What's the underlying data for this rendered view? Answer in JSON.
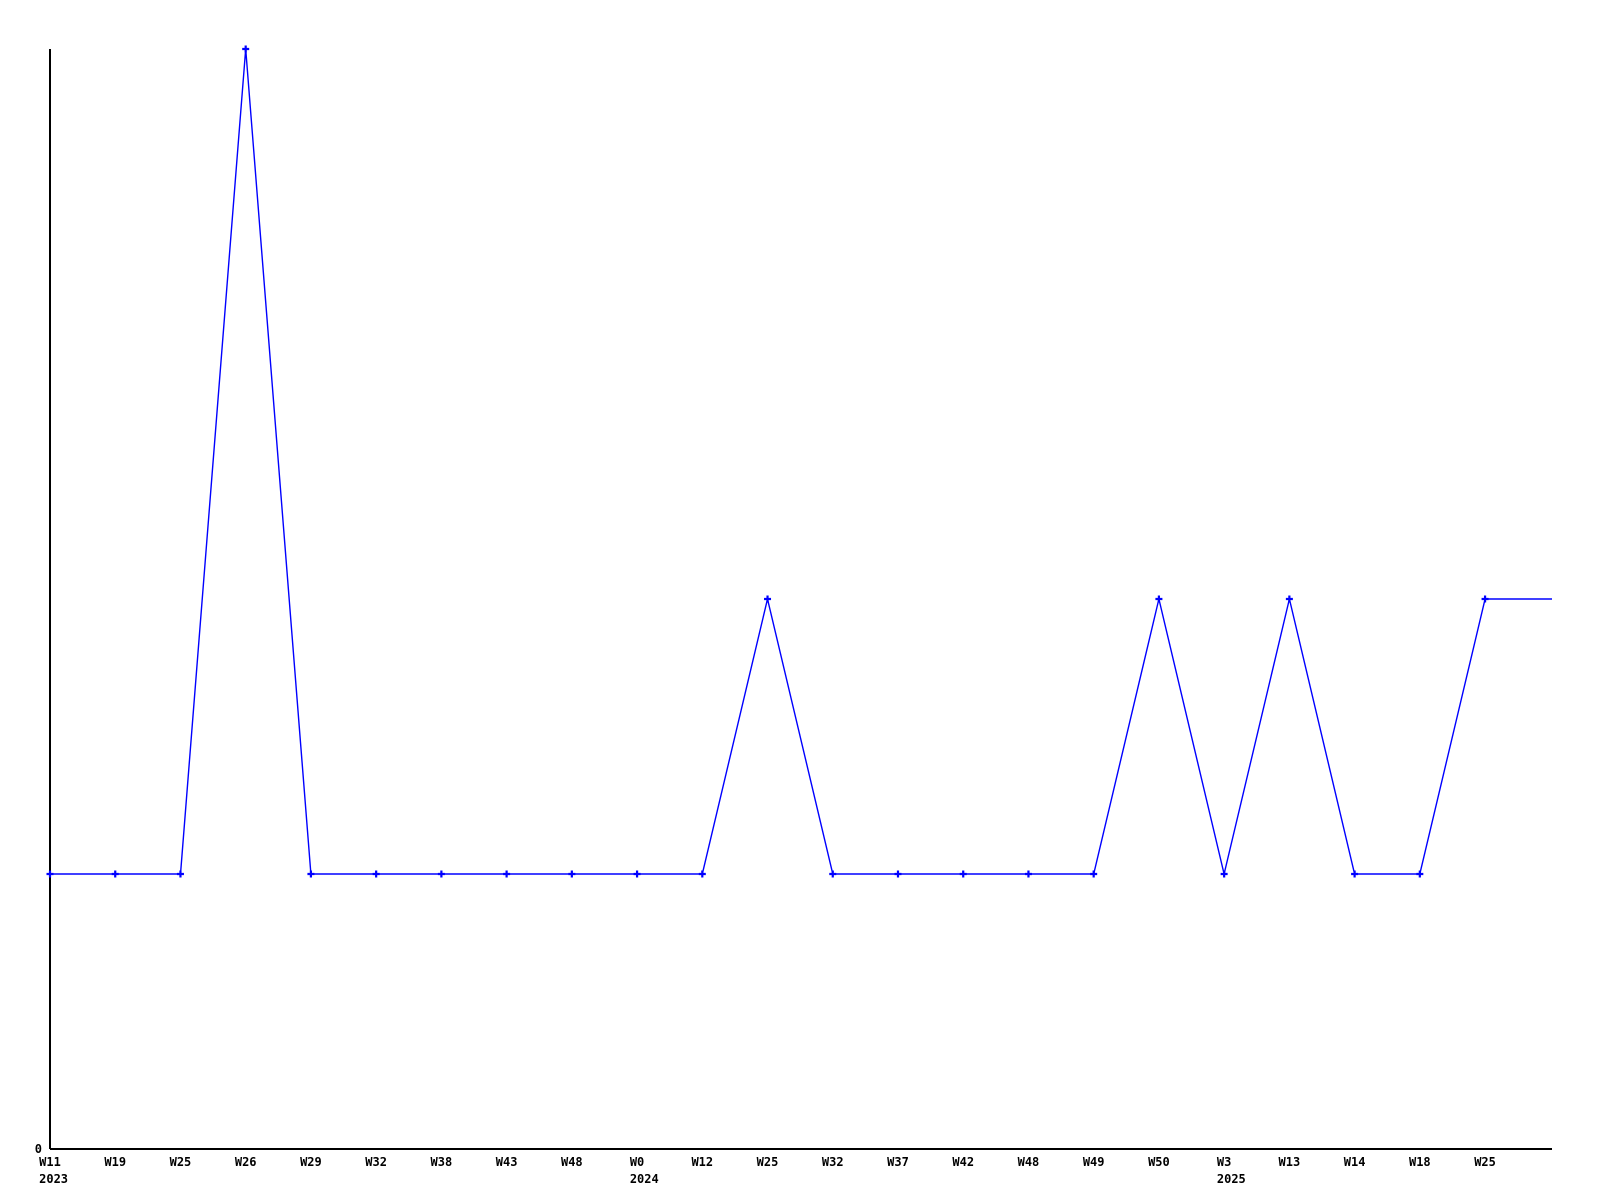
{
  "chart_data": {
    "type": "line",
    "title": "",
    "xlabel": "",
    "ylabel": "",
    "categories": [
      "W11",
      "W19",
      "W25",
      "W26",
      "W29",
      "W32",
      "W38",
      "W43",
      "W48",
      "W0",
      "W12",
      "W25",
      "W32",
      "W37",
      "W42",
      "W48",
      "W49",
      "W50",
      "W3",
      "W13",
      "W14",
      "W18",
      "W25"
    ],
    "year_labels": [
      {
        "index": 0,
        "text": "2023"
      },
      {
        "index": 9,
        "text": "2024"
      },
      {
        "index": 18,
        "text": "2025"
      }
    ],
    "values": [
      1,
      1,
      1,
      4,
      1,
      1,
      1,
      1,
      1,
      1,
      1,
      2,
      1,
      1,
      1,
      1,
      1,
      2,
      1,
      2,
      1,
      1,
      2
    ],
    "y_tick_labels": [
      "0"
    ],
    "ylim": [
      0,
      4
    ],
    "grid": false,
    "legend": false,
    "marker": "plus",
    "line_color": "#0000ff",
    "axis_color": "#000000",
    "text_color": "#000000",
    "background_color": "#ffffff",
    "line_extends_to_plot_right": true
  }
}
